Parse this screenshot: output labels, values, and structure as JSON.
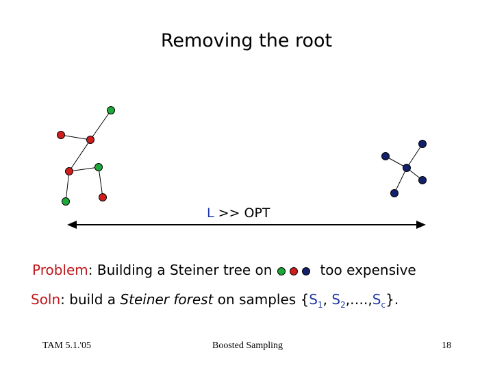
{
  "title": "Removing the root",
  "ratio": {
    "var": "L",
    "rest": " >> OPT"
  },
  "problem": {
    "label": "Problem",
    "rest": ": Building a Steiner tree on",
    "after": "too expensive"
  },
  "soln": {
    "label": "Soln",
    "rest": ": build a ",
    "emph": "Steiner forest",
    "tail": " on samples {",
    "s": "S",
    "sub1": "1",
    "comma1": ", ",
    "sub2": "2",
    "ellipsis": ",….,",
    "subc": "c",
    "close": "}."
  },
  "footer": {
    "left": "TAM 5.1.'05",
    "center": "Boosted Sampling",
    "right": "18"
  },
  "colors": {
    "green": "#1ea83a",
    "red": "#d01e1e",
    "navy": "#13206b",
    "blue_text": "#1f3aa8",
    "red_text": "#c0161c"
  }
}
